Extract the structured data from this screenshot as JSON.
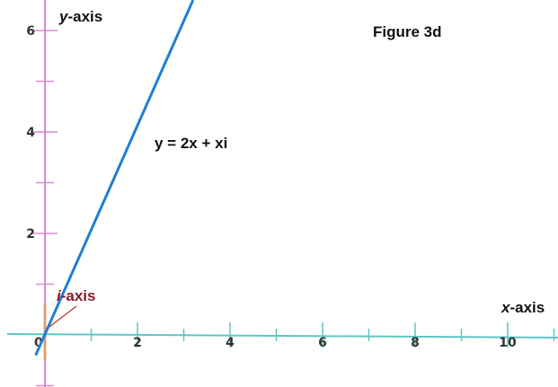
{
  "chart_data": {
    "type": "line",
    "title": "Figure 3d",
    "xlabel": {
      "italic": "x",
      "rest": "-axis"
    },
    "ylabel": {
      "italic": "y",
      "rest": "-axis"
    },
    "ilabel": {
      "italic": "i",
      "rest": "-axis"
    },
    "equation_label": "y = 2x + xi",
    "xlim": [
      0,
      11.2
    ],
    "ylim": [
      -1.1,
      6.6
    ],
    "x_tick_labels": [
      "0",
      "2",
      "4",
      "6",
      "8",
      "10"
    ],
    "x_tick_label_values": [
      0,
      2,
      4,
      6,
      8,
      10
    ],
    "x_minor_ticks": [
      1,
      3,
      5,
      7,
      9,
      11
    ],
    "y_tick_labels": [
      "2",
      "4",
      "6"
    ],
    "y_tick_label_values": [
      2,
      4,
      6
    ],
    "y_minor_ticks": [
      -1,
      1,
      3,
      5
    ],
    "series": [
      {
        "name": "y = 2x + xi",
        "x": [
          -0.2,
          3.2
        ],
        "y": [
          -0.4,
          6.6
        ],
        "color": "#1f7fd6"
      }
    ],
    "colors": {
      "x_axis": "#5ec6c6",
      "y_axis": "#d98ad1",
      "i_axis": "#e0a060",
      "i_label": "#8b1a2e",
      "arrow": "#c03030",
      "line": "#1f7fd6"
    }
  }
}
